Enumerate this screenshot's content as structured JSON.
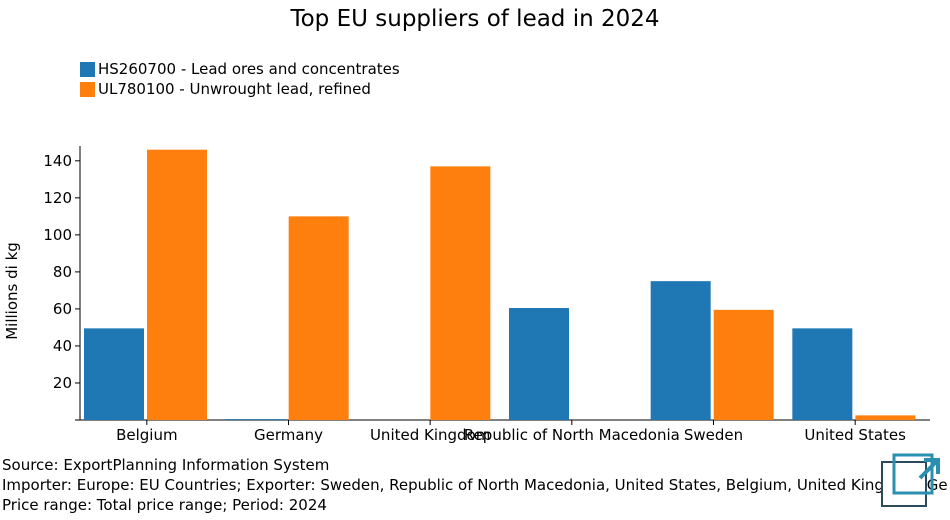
{
  "chart_data": {
    "type": "bar",
    "title": "Top EU suppliers of lead in 2024",
    "xlabel": "",
    "ylabel": "Millions di kg",
    "ylim": [
      0,
      148
    ],
    "yticks": [
      20,
      40,
      60,
      80,
      100,
      120,
      140
    ],
    "categories": [
      "Belgium",
      "Germany",
      "United Kingdom",
      "Republic of North Macedonia",
      "Sweden",
      "United States"
    ],
    "series": [
      {
        "name": "HS260700 - Lead ores and concentrates",
        "color": "#1f77b4",
        "values": [
          49.5,
          0.5,
          0,
          60.5,
          75,
          49.5
        ]
      },
      {
        "name": "UL780100 - Unwrought lead, refined",
        "color": "#ff7f0e",
        "values": [
          146,
          110,
          137,
          0,
          59.5,
          2.5
        ]
      }
    ],
    "legend_position": "top-left",
    "grid": false
  },
  "footer": {
    "source": "Source: ExportPlanning Information System",
    "importer": "Importer: Europe: EU Countries; Exporter: Sweden, Republic of North Macedonia, United States, Belgium, United Kingdom, Ge",
    "period": "Price range: Total price range; Period: 2024"
  },
  "logo_icon": "exportplanning-logo-icon"
}
